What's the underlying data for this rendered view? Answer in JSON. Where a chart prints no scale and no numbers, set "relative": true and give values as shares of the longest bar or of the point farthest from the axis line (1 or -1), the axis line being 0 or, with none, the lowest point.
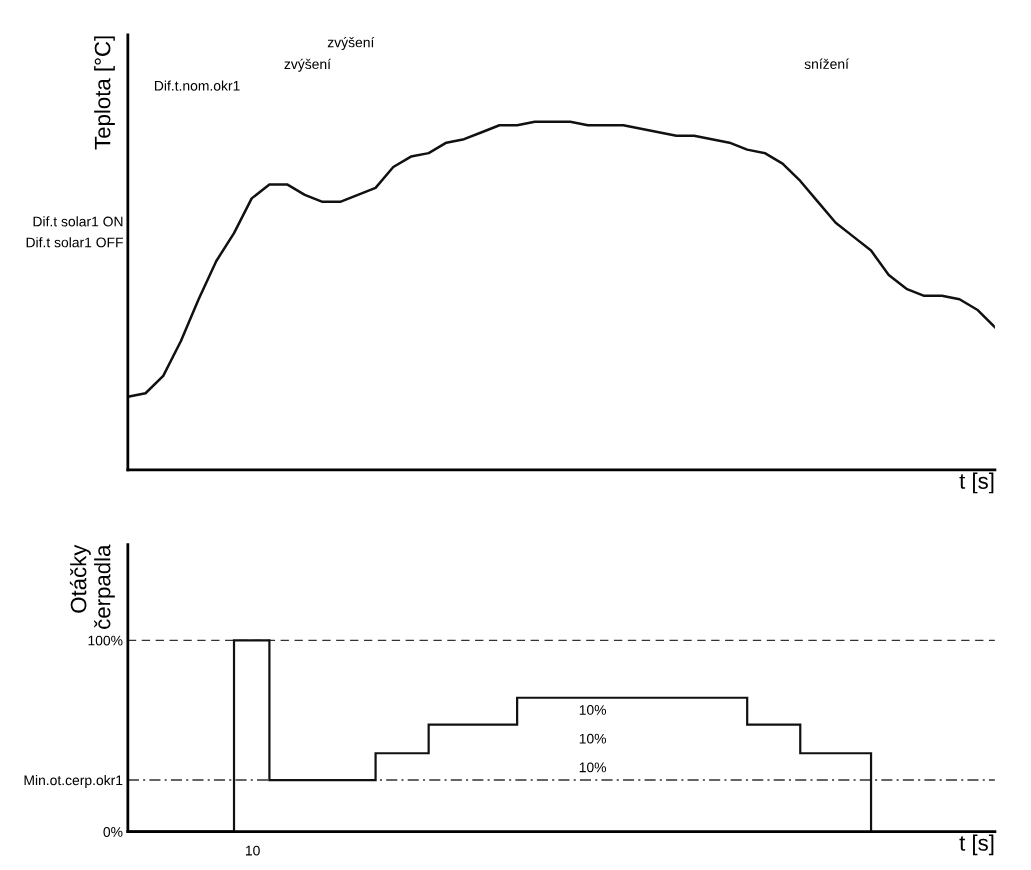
{
  "chart_data": [
    {
      "type": "line",
      "relative": true,
      "ylabel": "Teplota [°C]",
      "xlabel": "t [s]",
      "tick_labels": false,
      "grid": false,
      "legend": false,
      "categories": [
        null,
        null,
        null,
        null,
        null,
        null,
        null,
        null,
        null,
        null,
        null,
        null,
        null,
        null,
        null,
        null,
        null,
        null,
        null,
        null,
        null,
        null,
        null,
        null,
        null,
        null,
        null,
        null,
        null,
        null,
        null,
        null,
        null,
        null,
        null,
        null,
        null,
        null,
        null,
        null,
        null,
        null,
        null,
        null,
        null,
        null,
        null,
        null,
        null,
        null
      ],
      "series": [
        {
          "color": "#111111",
          "values": [
            0.21,
            0.22,
            0.27,
            0.37,
            0.49,
            0.6,
            0.68,
            0.78,
            0.82,
            0.82,
            0.79,
            0.77,
            0.77,
            0.79,
            0.81,
            0.87,
            0.9,
            0.91,
            0.94,
            0.95,
            0.97,
            0.99,
            0.99,
            1.0,
            1.0,
            1.0,
            0.99,
            0.99,
            0.99,
            0.98,
            0.97,
            0.96,
            0.96,
            0.95,
            0.94,
            0.92,
            0.91,
            0.88,
            0.83,
            0.77,
            0.71,
            0.67,
            0.63,
            0.56,
            0.52,
            0.5,
            0.5,
            0.49,
            0.46,
            0.41
          ]
        }
      ],
      "annotations": [
        "Dif.t.nom.okr1",
        "zvýšení",
        "zvýšení",
        "snížení",
        "Dif.t solar1 ON",
        "Dif.t solar1 OFF"
      ]
    },
    {
      "type": "step",
      "ylabel": "Otáčky\nčerpadla",
      "xlabel": "t [s]",
      "ylim": [
        0,
        150
      ],
      "tick_labels": "y",
      "grid": false,
      "legend": false,
      "categories": [
        null,
        null,
        null,
        null,
        null,
        null,
        null,
        null,
        null,
        null,
        null,
        null,
        null,
        null,
        null,
        null,
        null,
        null,
        null,
        null,
        null,
        null,
        null,
        null,
        null,
        null,
        null,
        null,
        null,
        null,
        null,
        null,
        null,
        null,
        null,
        null,
        null,
        null,
        null,
        null,
        null,
        null,
        null,
        null,
        null,
        null,
        null,
        null,
        null,
        null
      ],
      "yticks": [
        {
          "value": 0,
          "label": "0%"
        },
        {
          "value": 27,
          "label": "Min.ot.cerp.okr1"
        },
        {
          "value": 100,
          "label": "100%"
        }
      ],
      "series": [
        {
          "color": "#111111",
          "values": [
            0,
            0,
            0,
            0,
            0,
            0,
            100,
            100,
            27,
            27,
            27,
            27,
            27,
            27,
            41,
            41,
            41,
            56,
            56,
            56,
            56,
            56,
            70,
            70,
            70,
            70,
            70,
            70,
            70,
            70,
            70,
            70,
            70,
            70,
            70,
            56,
            56,
            56,
            41,
            41,
            41,
            41,
            0,
            null,
            null,
            null,
            null,
            null,
            null,
            null
          ]
        }
      ],
      "ref_lines": [
        {
          "axis": "y",
          "value": 100,
          "line_style": "dashed",
          "color": "#333333"
        },
        {
          "axis": "y",
          "value": 27,
          "line_style": "dashdot",
          "color": "#333333"
        }
      ],
      "annotations": [
        "10%",
        "10%",
        "10%",
        "10"
      ]
    }
  ]
}
